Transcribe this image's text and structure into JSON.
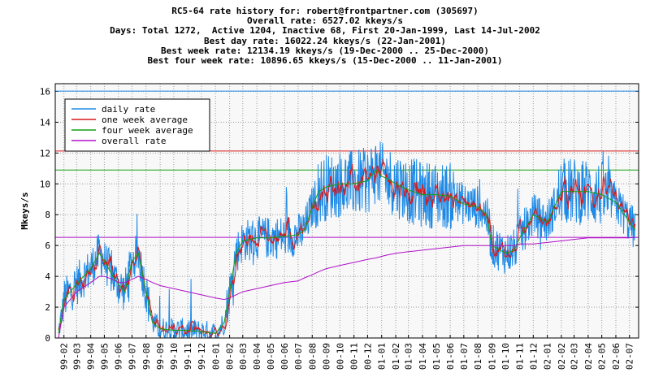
{
  "header": {
    "lines": [
      "RC5-64 rate history for: robert@frontpartner.com (305697)",
      "Overall rate: 6527.02 kkeys/s",
      "Days: Total 1272,  Active 1204, Inactive 68, First 20-Jan-1999, Last 14-Jul-2002",
      "Best day rate: 16022.24 kkeys/s (22-Jan-2001)",
      "Best week rate: 12134.19 kkeys/s (19-Dec-2000 .. 25-Dec-2000)",
      "Best four week rate: 10896.65 kkeys/s (15-Dec-2000 .. 11-Jan-2001)"
    ]
  },
  "chart_data": {
    "type": "line",
    "title": "",
    "xlabel": "",
    "ylabel": "Mkeys/s",
    "ylim": [
      0,
      16.5
    ],
    "yticks": [
      0,
      2,
      4,
      6,
      8,
      10,
      12,
      14,
      16
    ],
    "x_tick_labels": [
      "99-02",
      "99-03",
      "99-04",
      "99-05",
      "99-06",
      "99-07",
      "99-08",
      "99-09",
      "99-10",
      "99-11",
      "99-12",
      "00-01",
      "00-02",
      "00-03",
      "00-04",
      "00-05",
      "00-06",
      "00-07",
      "00-08",
      "00-09",
      "00-10",
      "00-11",
      "00-12",
      "01-01",
      "01-02",
      "01-03",
      "01-04",
      "01-05",
      "01-06",
      "01-07",
      "01-08",
      "01-09",
      "01-10",
      "01-11",
      "01-12",
      "02-01",
      "02-02",
      "02-03",
      "02-04",
      "02-05",
      "02-06",
      "02-07"
    ],
    "grid": true,
    "legend_position": "top-left",
    "series": [
      {
        "name": "daily rate",
        "color": "#1e8ae6"
      },
      {
        "name": "one week average",
        "color": "#d81818"
      },
      {
        "name": "four week average",
        "color": "#10a010"
      },
      {
        "name": "overall rate",
        "color": "#b010c8"
      }
    ],
    "horizontal_lines": [
      {
        "series": "daily rate",
        "y": 16.02,
        "color": "#1e8ae6"
      },
      {
        "series": "one week average",
        "y": 12.13,
        "color": "#d81818"
      },
      {
        "series": "four week average",
        "y": 10.9,
        "color": "#10a010"
      },
      {
        "series": "overall rate",
        "y": 6.53,
        "color": "#b010c8"
      }
    ],
    "trend_x": [
      "1999-01-20",
      "1999-02-01",
      "1999-03-01",
      "1999-04-01",
      "1999-04-20",
      "1999-05-01",
      "1999-05-20",
      "1999-06-01",
      "1999-06-15",
      "1999-07-01",
      "1999-07-15",
      "1999-08-01",
      "1999-08-15",
      "1999-09-01",
      "1999-10-01",
      "1999-11-01",
      "1999-12-01",
      "2000-01-01",
      "2000-01-20",
      "2000-02-01",
      "2000-02-15",
      "2000-03-01",
      "2000-04-01",
      "2000-05-01",
      "2000-06-01",
      "2000-07-01",
      "2000-07-15",
      "2000-08-01",
      "2000-08-15",
      "2000-09-01",
      "2000-10-01",
      "2000-11-01",
      "2000-12-01",
      "2000-12-20",
      "2001-01-01",
      "2001-01-15",
      "2001-02-01",
      "2001-03-01",
      "2001-04-01",
      "2001-05-01",
      "2001-06-01",
      "2001-07-01",
      "2001-08-01",
      "2001-08-20",
      "2001-09-01",
      "2001-10-01",
      "2001-10-20",
      "2001-11-01",
      "2001-12-01",
      "2002-01-01",
      "2002-02-01",
      "2002-03-01",
      "2002-04-01",
      "2002-05-01",
      "2002-06-01",
      "2002-06-20",
      "2002-07-01",
      "2002-07-14"
    ],
    "four_week_average": [
      0.3,
      2.5,
      3.5,
      4.5,
      5.5,
      5.0,
      4.0,
      3.5,
      3.0,
      5.0,
      5.5,
      3.0,
      1.0,
      0.6,
      0.5,
      0.5,
      0.4,
      0.3,
      1.0,
      3.0,
      5.5,
      6.3,
      6.5,
      6.5,
      6.6,
      6.7,
      7.0,
      8.5,
      9.5,
      9.8,
      10.0,
      10.0,
      10.2,
      10.9,
      10.5,
      10.3,
      10.0,
      9.6,
      9.3,
      9.3,
      9.2,
      8.7,
      8.5,
      8.0,
      6.0,
      5.5,
      5.7,
      6.5,
      8.0,
      7.5,
      9.5,
      9.5,
      9.5,
      9.3,
      8.8,
      8.0,
      7.5,
      7.0
    ],
    "overall_rate": [
      0.0,
      2.0,
      3.0,
      3.6,
      4.0,
      4.0,
      3.8,
      3.6,
      3.6,
      3.8,
      4.0,
      3.8,
      3.6,
      3.4,
      3.2,
      3.0,
      2.8,
      2.6,
      2.5,
      2.6,
      2.8,
      3.0,
      3.2,
      3.4,
      3.6,
      3.7,
      3.9,
      4.1,
      4.3,
      4.5,
      4.7,
      4.9,
      5.1,
      5.2,
      5.3,
      5.4,
      5.5,
      5.6,
      5.7,
      5.8,
      5.9,
      6.0,
      6.0,
      6.0,
      6.0,
      6.0,
      6.0,
      6.1,
      6.1,
      6.2,
      6.3,
      6.4,
      6.5,
      6.5,
      6.5,
      6.5,
      6.5,
      6.53
    ]
  }
}
